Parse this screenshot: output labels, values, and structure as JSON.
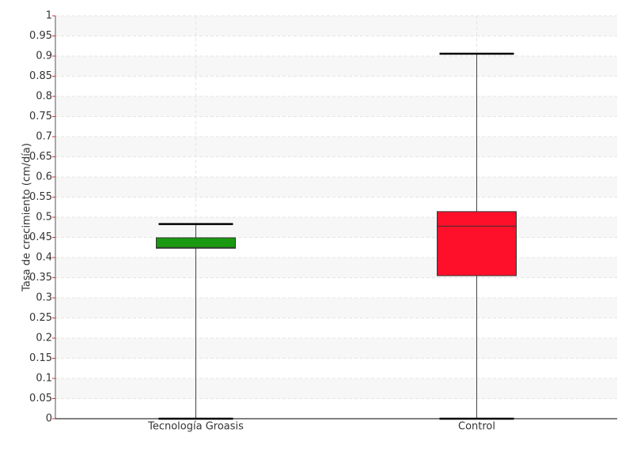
{
  "chart_data": {
    "type": "box",
    "y_label": "Tasa de crecimiento (cm/día)",
    "categories": [
      "Tecnología Groasis",
      "Control"
    ],
    "boxes": [
      {
        "min": 0,
        "q1": 0.423,
        "median": 0.425,
        "q3": 0.449,
        "max": 0.483,
        "color": "#1a9a10"
      },
      {
        "min": 0,
        "q1": 0.355,
        "median": 0.478,
        "q3": 0.514,
        "max": 0.906,
        "color": "#ff102a"
      }
    ],
    "ylim": [
      0,
      1
    ],
    "yticks": [
      0,
      0.05,
      0.1,
      0.15,
      0.2,
      0.25,
      0.3,
      0.35,
      0.4,
      0.45,
      0.5,
      0.55,
      0.6,
      0.65,
      0.7,
      0.75,
      0.8,
      0.85,
      0.9,
      0.95,
      1
    ],
    "grid": true
  }
}
